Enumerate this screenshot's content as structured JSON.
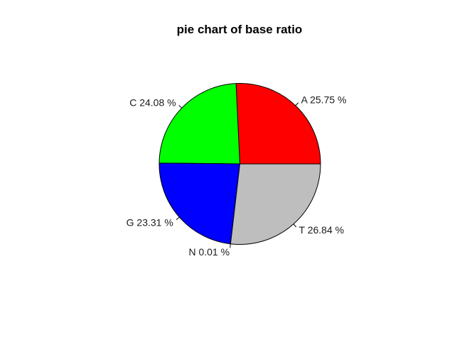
{
  "chart_data": {
    "type": "pie",
    "title": "pie chart of base ratio",
    "start_angle_deg": 0,
    "direction": "counterclockwise",
    "slices": [
      {
        "name": "A",
        "value": 25.75,
        "label": "A 25.75 %",
        "color": "#ff0000"
      },
      {
        "name": "C",
        "value": 24.08,
        "label": "C 24.08 %",
        "color": "#00ff00"
      },
      {
        "name": "G",
        "value": 23.31,
        "label": "G 23.31 %",
        "color": "#0000ff"
      },
      {
        "name": "N",
        "value": 0.01,
        "label": "N 0.01 %",
        "color": "#00ffff"
      },
      {
        "name": "T",
        "value": 26.84,
        "label": "T 26.84 %",
        "color": "#bebebe"
      }
    ]
  }
}
